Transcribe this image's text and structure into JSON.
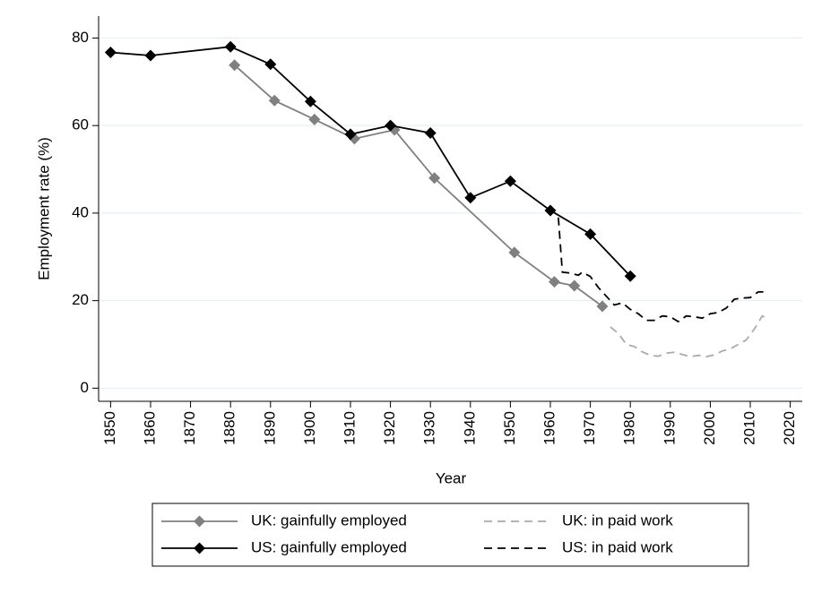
{
  "chart_data": {
    "type": "line",
    "xlabel": "Year",
    "ylabel": "Employment rate (%)",
    "xlim": [
      1847,
      2023
    ],
    "xticks": [
      1850,
      1860,
      1870,
      1880,
      1890,
      1900,
      1910,
      1920,
      1930,
      1940,
      1950,
      1960,
      1970,
      1980,
      1990,
      2000,
      2010,
      2020
    ],
    "ylim": [
      -3,
      85
    ],
    "yticks": [
      0,
      20,
      40,
      60,
      80
    ],
    "grid": true,
    "legend": "bottom",
    "series": [
      {
        "name": "UK: gainfully employed",
        "color": "#808080",
        "marker": "diamond",
        "dashed": false,
        "x": [
          1881,
          1891,
          1901,
          1911,
          1921,
          1931,
          1951,
          1961,
          1966,
          1973
        ],
        "values": [
          73.8,
          65.7,
          61.4,
          57,
          59,
          48,
          31,
          24.3,
          23.4,
          18.7
        ]
      },
      {
        "name": "UK: in paid work",
        "color": "#aaaaaa",
        "marker": "none",
        "dashed": true,
        "x": [
          1975,
          1977,
          1979,
          1981,
          1983,
          1985,
          1987,
          1989,
          1991,
          1993,
          1995,
          1997,
          1999,
          2001,
          2003,
          2005,
          2007,
          2009,
          2011,
          2013,
          2014
        ],
        "values": [
          14,
          12.5,
          10,
          9.5,
          8.3,
          7.5,
          7.3,
          8,
          8.2,
          7.7,
          7.2,
          7.5,
          7.2,
          7.6,
          8.5,
          9,
          10,
          11,
          13.5,
          16.5,
          16
        ]
      },
      {
        "name": "US: gainfully employed",
        "color": "#000000",
        "marker": "diamond",
        "dashed": false,
        "x": [
          1850,
          1860,
          1880,
          1890,
          1900,
          1910,
          1920,
          1930,
          1940,
          1950,
          1960,
          1970,
          1980
        ],
        "values": [
          76.7,
          76,
          78,
          74,
          65.5,
          58,
          60,
          58.3,
          43.5,
          47.3,
          40.6,
          35.2,
          25.6
        ]
      },
      {
        "name": "US: in paid work",
        "color": "#000000",
        "marker": "none",
        "dashed": true,
        "x": [
          1962,
          1963,
          1965,
          1967,
          1968,
          1970,
          1972,
          1974,
          1976,
          1978,
          1980,
          1982,
          1984,
          1986,
          1988,
          1990,
          1992,
          1994,
          1996,
          1998,
          2000,
          2002,
          2004,
          2006,
          2008,
          2010,
          2012,
          2014
        ],
        "values": [
          39,
          26.5,
          26.3,
          25.8,
          26.5,
          25.5,
          23,
          21,
          19,
          19.5,
          18,
          17,
          15.5,
          15.5,
          16.5,
          16.3,
          15.2,
          16.5,
          16.3,
          16,
          17,
          17.3,
          18.3,
          20.3,
          20.6,
          20.7,
          22,
          22
        ]
      }
    ]
  }
}
